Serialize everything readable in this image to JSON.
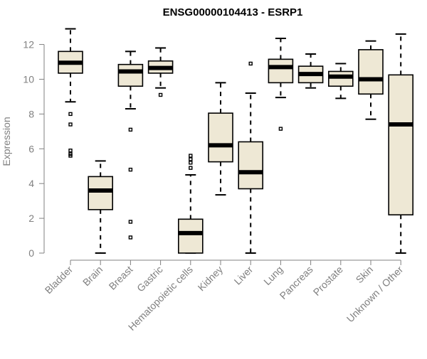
{
  "chart_data": {
    "type": "box",
    "title": "ENSG00000104413 - ESRP1",
    "xlabel": "",
    "ylabel": "Expression",
    "ylim": [
      0,
      12.8
    ],
    "yticks": [
      0,
      2,
      4,
      6,
      8,
      10,
      12
    ],
    "colors": {
      "box_fill": "#EEE8D5",
      "box_stroke": "#000000",
      "axis": "#808080"
    },
    "categories": [
      "Bladder",
      "Brain",
      "Breast",
      "Gastric",
      "Hematopoietic cells",
      "Kidney",
      "Liver",
      "Lung",
      "Pancreas",
      "Prostate",
      "Skin",
      "Unknown / Other"
    ],
    "boxes": [
      {
        "whisker_low": 8.7,
        "q1": 10.35,
        "median": 10.95,
        "q3": 11.6,
        "whisker_high": 12.9,
        "outliers": [
          8.0,
          7.4,
          5.9,
          5.7,
          5.6
        ]
      },
      {
        "whisker_low": 0.0,
        "q1": 2.5,
        "median": 3.6,
        "q3": 4.4,
        "whisker_high": 5.3,
        "outliers": []
      },
      {
        "whisker_low": 8.3,
        "q1": 9.6,
        "median": 10.45,
        "q3": 10.85,
        "whisker_high": 11.6,
        "outliers": [
          7.1,
          4.8,
          1.8,
          0.9
        ]
      },
      {
        "whisker_low": 9.5,
        "q1": 10.35,
        "median": 10.65,
        "q3": 11.05,
        "whisker_high": 11.8,
        "outliers": [
          9.1
        ]
      },
      {
        "whisker_low": 0.0,
        "q1": 0.0,
        "median": 1.15,
        "q3": 1.95,
        "whisker_high": 4.5,
        "outliers": [
          5.6,
          5.4,
          5.2,
          4.9
        ]
      },
      {
        "whisker_low": 3.35,
        "q1": 5.25,
        "median": 6.2,
        "q3": 8.05,
        "whisker_high": 9.8,
        "outliers": []
      },
      {
        "whisker_low": 0.0,
        "q1": 3.7,
        "median": 4.65,
        "q3": 6.4,
        "whisker_high": 9.2,
        "outliers": [
          10.9
        ]
      },
      {
        "whisker_low": 8.95,
        "q1": 9.8,
        "median": 10.7,
        "q3": 11.15,
        "whisker_high": 12.35,
        "outliers": [
          7.15
        ]
      },
      {
        "whisker_low": 9.5,
        "q1": 9.8,
        "median": 10.3,
        "q3": 10.75,
        "whisker_high": 11.45,
        "outliers": []
      },
      {
        "whisker_low": 8.9,
        "q1": 9.6,
        "median": 10.15,
        "q3": 10.45,
        "whisker_high": 10.9,
        "outliers": []
      },
      {
        "whisker_low": 7.7,
        "q1": 9.15,
        "median": 10.0,
        "q3": 11.7,
        "whisker_high": 12.2,
        "outliers": []
      },
      {
        "whisker_low": 0.0,
        "q1": 2.2,
        "median": 7.4,
        "q3": 10.25,
        "whisker_high": 12.6,
        "outliers": []
      }
    ]
  }
}
